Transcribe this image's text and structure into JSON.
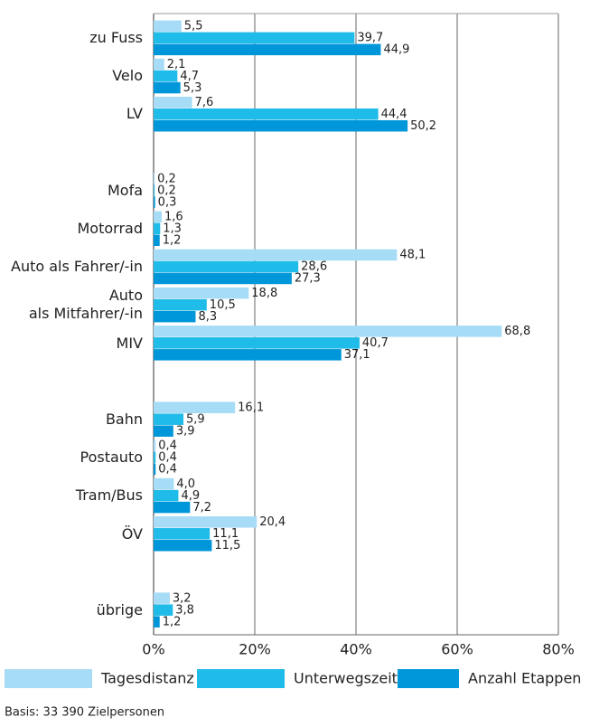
{
  "chart_data": {
    "type": "bar",
    "orientation": "horizontal",
    "categories": [
      "zu Fuss",
      "Velo",
      "LV",
      null,
      "Mofa",
      "Motorrad",
      "Auto als Fahrer/-in",
      "Auto\nals Mitfahrer/-in",
      "MIV",
      null,
      "Bahn",
      "Postauto",
      "Tram/Bus",
      "ÖV",
      null,
      "übrige"
    ],
    "series": [
      {
        "name": "Tagesdistanz",
        "color": "#a6dcf5",
        "values": [
          5.5,
          2.1,
          7.6,
          null,
          0.2,
          1.6,
          48.1,
          18.8,
          68.8,
          null,
          16.1,
          0.4,
          4.0,
          20.4,
          null,
          3.2
        ],
        "value_labels": [
          "5,5",
          "2,1",
          "7,6",
          null,
          "0,2",
          "1,6",
          "48,1",
          "18,8",
          "68,8",
          null,
          "16,1",
          "0,4",
          "4,0",
          "20,4",
          null,
          "3,2"
        ]
      },
      {
        "name": "Unterwegszeit",
        "color": "#1fbbe9",
        "values": [
          39.7,
          4.7,
          44.4,
          null,
          0.2,
          1.3,
          28.6,
          10.5,
          40.7,
          null,
          5.9,
          0.4,
          4.9,
          11.1,
          null,
          3.8
        ],
        "value_labels": [
          "39,7",
          "4,7",
          "44,4",
          null,
          "0,2",
          "1,3",
          "28,6",
          "10,5",
          "40,7",
          null,
          "5,9",
          "0,4",
          "4,9",
          "11,1",
          null,
          "3,8"
        ]
      },
      {
        "name": "Anzahl Etappen",
        "color": "#0097da",
        "values": [
          44.9,
          5.3,
          50.2,
          null,
          0.3,
          1.2,
          27.3,
          8.3,
          37.1,
          null,
          3.9,
          0.4,
          7.2,
          11.5,
          null,
          1.2
        ],
        "value_labels": [
          "44,9",
          "5,3",
          "50,2",
          null,
          "0,3",
          "1,2",
          "27,3",
          "8,3",
          "37,1",
          null,
          "3,9",
          "0,4",
          "7,2",
          "11,5",
          null,
          "1,2"
        ]
      }
    ],
    "xlim": [
      0,
      80
    ],
    "xticks": [
      {
        "value": 0,
        "label": "0%"
      },
      {
        "value": 20,
        "label": "20%"
      },
      {
        "value": 40,
        "label": "40%"
      },
      {
        "value": 60,
        "label": "60%"
      },
      {
        "value": 80,
        "label": "80%"
      }
    ],
    "grid": true,
    "legend": "bottom",
    "note": "Basis: 33 390 Zielpersonen"
  }
}
